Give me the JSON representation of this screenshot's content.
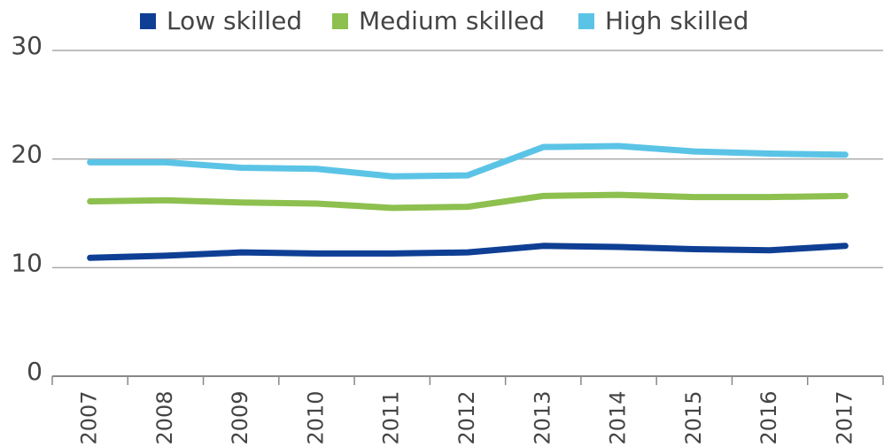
{
  "chart_data": {
    "type": "line",
    "categories": [
      "2007",
      "2008",
      "2009",
      "2010",
      "2011",
      "2012",
      "2013",
      "2014",
      "2015",
      "2016",
      "2017"
    ],
    "series": [
      {
        "name": "Low skilled",
        "color": "#0e3f94",
        "values": [
          10.9,
          11.1,
          11.4,
          11.3,
          11.3,
          11.4,
          12.0,
          11.9,
          11.7,
          11.6,
          12.0
        ]
      },
      {
        "name": "Medium skilled",
        "color": "#8dc04f",
        "values": [
          16.1,
          16.2,
          16.0,
          15.9,
          15.5,
          15.6,
          16.6,
          16.7,
          16.5,
          16.5,
          16.6
        ]
      },
      {
        "name": "High skilled",
        "color": "#5bc4e6",
        "values": [
          19.7,
          19.7,
          19.2,
          19.1,
          18.4,
          18.5,
          21.1,
          21.2,
          20.7,
          20.5,
          20.4
        ]
      }
    ],
    "ylim": [
      0,
      30
    ],
    "yticks": [
      0,
      10,
      20,
      30
    ],
    "grid": true,
    "legend": "top"
  }
}
